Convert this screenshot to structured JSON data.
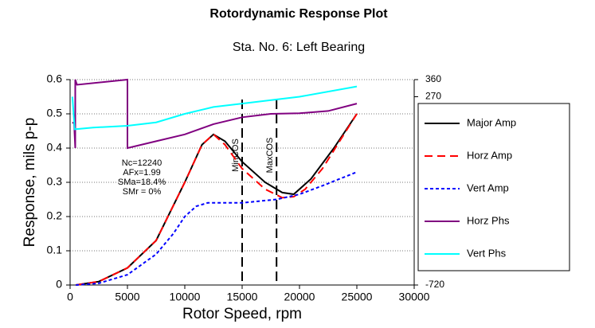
{
  "chart_data": {
    "type": "line",
    "title": "Rotordynamic Response Plot",
    "subtitle": "Sta. No. 6: Left Bearing",
    "xlabel": "Rotor Speed, rpm",
    "ylabel": "Response, mils p-p",
    "xlim": [
      0,
      30000
    ],
    "xticks": [
      0,
      5000,
      10000,
      15000,
      20000,
      25000,
      30000
    ],
    "ylim": [
      0,
      0.6
    ],
    "yticks": [
      0,
      0.1,
      0.2,
      0.3,
      0.4,
      0.5,
      0.6
    ],
    "y2lim": [
      -720,
      360
    ],
    "y2ticks": [
      -720,
      270,
      360
    ],
    "grid": true,
    "legend": "right",
    "annotation": [
      "Nc=12240",
      "AFx=1.99",
      "SMa=18.4%",
      "SMr = 0%"
    ],
    "markers": [
      {
        "x": 15000,
        "label": "MinCOS"
      },
      {
        "x": 18000,
        "label": "MaxCOS"
      }
    ],
    "series": [
      {
        "name": "Major Amp",
        "color": "#000000",
        "x": [
          500,
          2500,
          5000,
          7500,
          10000,
          11500,
          12500,
          13500,
          15000,
          17000,
          18500,
          19500,
          21000,
          23000,
          25000
        ],
        "values": [
          0,
          0.01,
          0.05,
          0.13,
          0.3,
          0.41,
          0.44,
          0.42,
          0.36,
          0.3,
          0.27,
          0.265,
          0.31,
          0.4,
          0.5
        ]
      },
      {
        "name": "Horz Amp",
        "color": "#ff0000",
        "x": [
          500,
          2500,
          5000,
          7500,
          10000,
          11500,
          12500,
          13500,
          15000,
          17000,
          18500,
          19500,
          20500,
          22000,
          23500,
          25000
        ],
        "values": [
          0,
          0.01,
          0.05,
          0.13,
          0.3,
          0.41,
          0.44,
          0.41,
          0.34,
          0.28,
          0.255,
          0.258,
          0.28,
          0.34,
          0.42,
          0.5
        ]
      },
      {
        "name": "Vert Amp",
        "color": "#0000ff",
        "x": [
          500,
          2500,
          5000,
          7500,
          9000,
          10000,
          11000,
          12000,
          15000,
          18000,
          20000,
          22000,
          25000
        ],
        "values": [
          0,
          0.005,
          0.03,
          0.09,
          0.15,
          0.2,
          0.23,
          0.24,
          0.24,
          0.25,
          0.265,
          0.29,
          0.33
        ]
      },
      {
        "name": "Horz Phs",
        "color": "#800080",
        "axis": "y2",
        "x": [
          200,
          350,
          450,
          450,
          600,
          5000,
          5000,
          7500,
          10000,
          12500,
          15000,
          17500,
          20000,
          22500,
          25000
        ],
        "values": [
          135,
          130,
          0,
          360,
          333,
          360,
          0,
          36,
          72,
          126,
          162,
          180,
          183,
          195,
          234
        ]
      },
      {
        "name": "Vert Phs",
        "color": "#00ffff",
        "axis": "y2",
        "x": [
          200,
          400,
          2000,
          5000,
          7500,
          10000,
          12500,
          15000,
          20000,
          25000
        ],
        "values": [
          270,
          99,
          108,
          117,
          135,
          180,
          216,
          234,
          270,
          324
        ]
      }
    ]
  }
}
